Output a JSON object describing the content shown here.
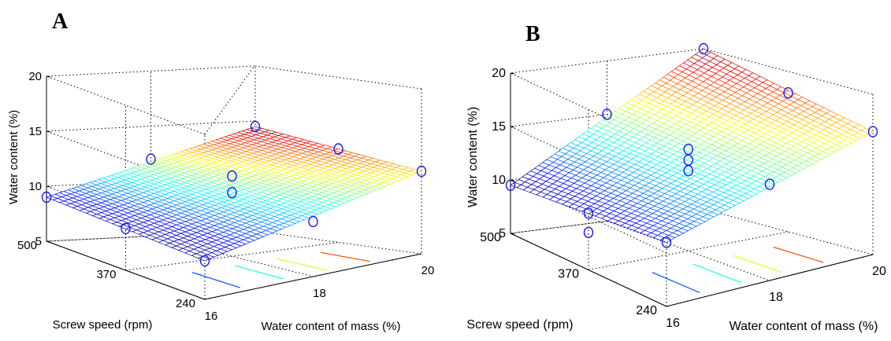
{
  "chart_data": [
    {
      "type": "surface",
      "panel_label": "A",
      "zlabel": "Water content (%)",
      "xlabel": "Water content of mass (%)",
      "ylabel": "Screw speed (rpm)",
      "zlim": [
        5,
        20
      ],
      "xlim": [
        16,
        20
      ],
      "ylim": [
        240,
        500
      ],
      "zticks": [
        "5",
        "10",
        "15",
        "20"
      ],
      "xticks": [
        "16",
        "18",
        "20"
      ],
      "yticks": [
        "240",
        "370",
        "500"
      ],
      "grid": true,
      "colormap": "jet",
      "surface": {
        "z_at_x16_y240": 8.5,
        "z_at_x16_y500": 9.0,
        "z_at_x20_y240": 12.5,
        "z_at_x20_y500": 14.5
      },
      "observed_points": [
        {
          "x": 16,
          "y": 500,
          "z": 9.0
        },
        {
          "x": 16,
          "y": 370,
          "z": 8.8
        },
        {
          "x": 16,
          "y": 240,
          "z": 8.5
        },
        {
          "x": 18,
          "y": 500,
          "z": 12.0
        },
        {
          "x": 18,
          "y": 370,
          "z": 10.8
        },
        {
          "x": 18,
          "y": 240,
          "z": 10.0
        },
        {
          "x": 20,
          "y": 500,
          "z": 14.5
        },
        {
          "x": 20,
          "y": 370,
          "z": 13.5
        },
        {
          "x": 20,
          "y": 240,
          "z": 12.5
        },
        {
          "x": 18,
          "y": 370,
          "z": 12.3
        }
      ]
    },
    {
      "type": "surface",
      "panel_label": "B",
      "zlabel": "Water content (%)",
      "xlabel": "Water content of mass (%)",
      "ylabel": "Screw speed (rpm)",
      "zlim": [
        5,
        20
      ],
      "xlim": [
        16,
        20
      ],
      "ylim": [
        240,
        500
      ],
      "zticks": [
        "5",
        "10",
        "15",
        "20"
      ],
      "xticks": [
        "16",
        "18",
        "20"
      ],
      "yticks": [
        "240",
        "370",
        "500"
      ],
      "grid": true,
      "colormap": "jet",
      "surface": {
        "z_at_x16_y240": 11.0,
        "z_at_x16_y500": 9.5,
        "z_at_x20_y240": 16.5,
        "z_at_x20_y500": 20.0
      },
      "observed_points": [
        {
          "x": 16,
          "y": 500,
          "z": 9.5
        },
        {
          "x": 16,
          "y": 370,
          "z": 10.3
        },
        {
          "x": 16,
          "y": 240,
          "z": 11.0
        },
        {
          "x": 18,
          "y": 500,
          "z": 15.0
        },
        {
          "x": 18,
          "y": 370,
          "z": 14.5
        },
        {
          "x": 18,
          "y": 240,
          "z": 14.0
        },
        {
          "x": 20,
          "y": 500,
          "z": 20.0
        },
        {
          "x": 20,
          "y": 370,
          "z": 18.0
        },
        {
          "x": 20,
          "y": 240,
          "z": 16.5
        },
        {
          "x": 16,
          "y": 370,
          "z": 8.5
        },
        {
          "x": 18,
          "y": 370,
          "z": 12.5
        },
        {
          "x": 18,
          "y": 370,
          "z": 13.5
        }
      ]
    }
  ]
}
